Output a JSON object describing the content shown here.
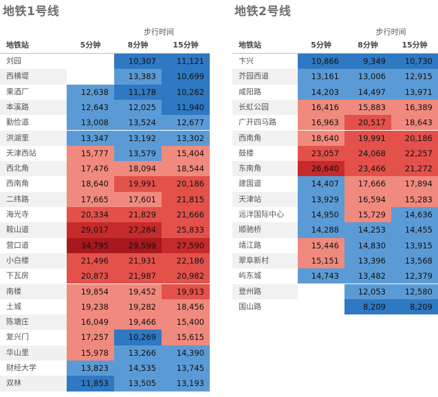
{
  "chart_data": [
    {
      "type": "heatmap",
      "title": "地铁1号线",
      "group_header": "步行时间",
      "row_header": "地铁站",
      "columns": [
        "5分钟",
        "8分钟",
        "15分钟"
      ],
      "rows": [
        {
          "station": "刘园",
          "values": [
            null,
            "10,307",
            "11,121"
          ]
        },
        {
          "station": "西横堤",
          "values": [
            null,
            "13,383",
            "10,699"
          ]
        },
        {
          "station": "果酒厂",
          "values": [
            "12,638",
            "11,178",
            "10,262"
          ]
        },
        {
          "station": "本溪路",
          "values": [
            "12,643",
            "12,025",
            "11,940"
          ]
        },
        {
          "station": "勤俭道",
          "values": [
            "13,008",
            "13,524",
            "12,677"
          ]
        },
        {
          "station": "洪湖里",
          "values": [
            "13,347",
            "13,192",
            "13,302"
          ]
        },
        {
          "station": "天津西站",
          "values": [
            "15,777",
            "13,579",
            "15,404"
          ]
        },
        {
          "station": "西北角",
          "values": [
            "17,476",
            "18,094",
            "18,544"
          ]
        },
        {
          "station": "西南角",
          "values": [
            "18,640",
            "19,991",
            "20,186"
          ]
        },
        {
          "station": "二纬路",
          "values": [
            "17,665",
            "17,601",
            "21,815"
          ]
        },
        {
          "station": "海光寺",
          "values": [
            "20,334",
            "21,829",
            "21,666"
          ]
        },
        {
          "station": "鞍山道",
          "values": [
            "29,017",
            "27,284",
            "25,833"
          ]
        },
        {
          "station": "营口道",
          "values": [
            "34,795",
            "29,599",
            "27,590"
          ]
        },
        {
          "station": "小白楼",
          "values": [
            "21,496",
            "21,931",
            "22,186"
          ]
        },
        {
          "station": "下瓦房",
          "values": [
            "20,873",
            "21,987",
            "20,982"
          ]
        },
        {
          "station": "南楼",
          "values": [
            "19,854",
            "19,452",
            "19,913"
          ]
        },
        {
          "station": "土城",
          "values": [
            "19,238",
            "19,282",
            "18,456"
          ]
        },
        {
          "station": "陈塘庄",
          "values": [
            "16,049",
            "19,466",
            "15,400"
          ]
        },
        {
          "station": "复兴门",
          "values": [
            "17,257",
            "10,269",
            "15,615"
          ]
        },
        {
          "station": "华山里",
          "values": [
            "15,978",
            "13,266",
            "14,390"
          ]
        },
        {
          "station": "财经大学",
          "values": [
            "13,823",
            "14,535",
            "13,745"
          ]
        },
        {
          "station": "双林",
          "values": [
            "11,853",
            "13,505",
            "13,193"
          ]
        }
      ]
    },
    {
      "type": "heatmap",
      "title": "地铁2号线",
      "group_header": "步行时间",
      "row_header": "地铁站",
      "columns": [
        "5分钟",
        "8分钟",
        "15分钟"
      ],
      "rows": [
        {
          "station": "卞兴",
          "values": [
            "10,866",
            "9,349",
            "10,730"
          ]
        },
        {
          "station": "芥园西道",
          "values": [
            "13,161",
            "13,006",
            "12,915"
          ]
        },
        {
          "station": "咸阳路",
          "values": [
            "14,203",
            "14,497",
            "13,971"
          ]
        },
        {
          "station": "长虹公园",
          "values": [
            "16,416",
            "15,883",
            "16,389"
          ]
        },
        {
          "station": "广开四马路",
          "values": [
            "16,963",
            "20,517",
            "18,643"
          ]
        },
        {
          "station": "西南角",
          "values": [
            "18,640",
            "19,991",
            "20,186"
          ]
        },
        {
          "station": "鼓楼",
          "values": [
            "23,057",
            "24,068",
            "22,257"
          ]
        },
        {
          "station": "东南角",
          "values": [
            "26,640",
            "23,466",
            "21,272"
          ]
        },
        {
          "station": "建国道",
          "values": [
            "14,407",
            "17,666",
            "17,894"
          ]
        },
        {
          "station": "天津站",
          "values": [
            "13,929",
            "16,594",
            "15,283"
          ]
        },
        {
          "station": "远洋国际中心",
          "values": [
            "14,950",
            "15,729",
            "14,636"
          ]
        },
        {
          "station": "顺驰桥",
          "values": [
            "14,288",
            "14,253",
            "14,455"
          ]
        },
        {
          "station": "靖江路",
          "values": [
            "15,446",
            "14,830",
            "13,915"
          ]
        },
        {
          "station": "翠阜新村",
          "values": [
            "15,151",
            "13,396",
            "13,568"
          ]
        },
        {
          "station": "屿东城",
          "values": [
            "14,743",
            "13,482",
            "12,379"
          ]
        },
        {
          "station": "登州路",
          "values": [
            null,
            "12,053",
            "12,580"
          ]
        },
        {
          "station": "国山路",
          "values": [
            null,
            "8,209",
            "8,209"
          ]
        }
      ]
    }
  ],
  "colors": {
    "dark_blue": "#2f78c2",
    "blue": "#5b9bd5",
    "light_red": "#f08a7e",
    "red": "#e3514a",
    "dark_red": "#c62a2a",
    "deep_red": "#a8181e"
  }
}
